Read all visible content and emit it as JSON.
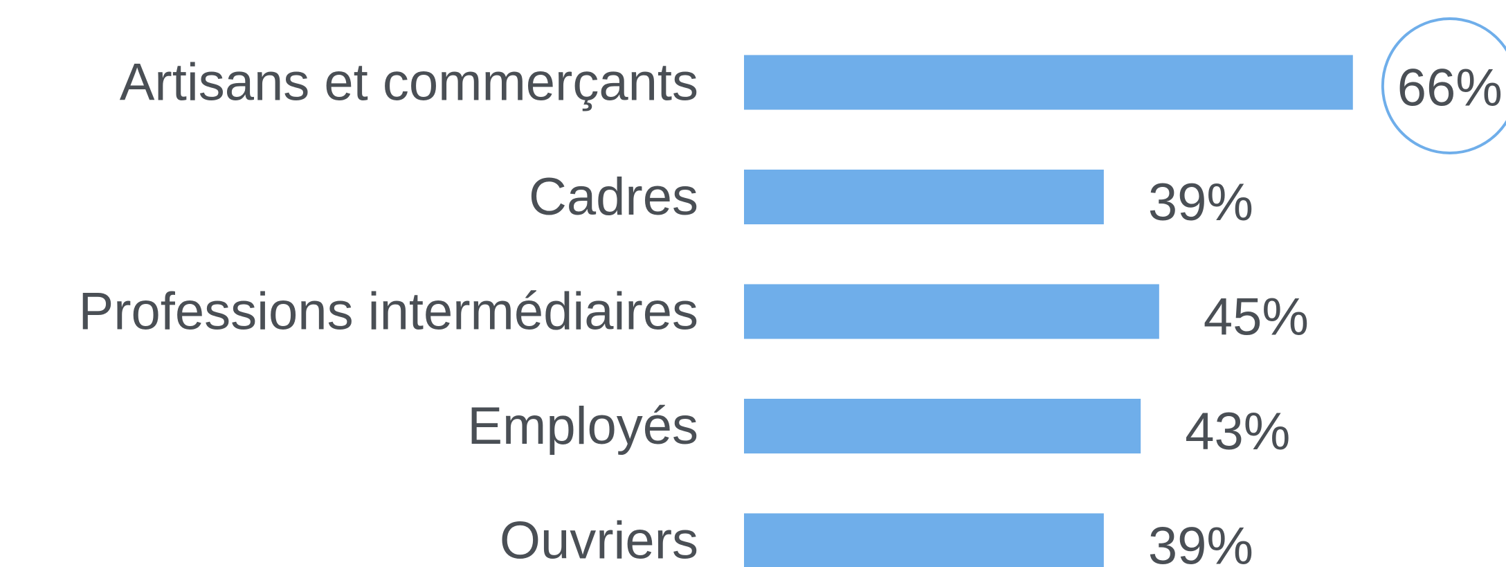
{
  "chart_data": {
    "type": "bar",
    "orientation": "horizontal",
    "categories": [
      "Artisans et commerçants",
      "Cadres",
      "Professions intermédiaires",
      "Employés",
      "Ouvriers"
    ],
    "values": [
      66,
      39,
      45,
      43,
      39
    ],
    "value_labels": [
      "66%",
      "39%",
      "45%",
      "43%",
      "39%"
    ],
    "color": "#6faeea"
  }
}
